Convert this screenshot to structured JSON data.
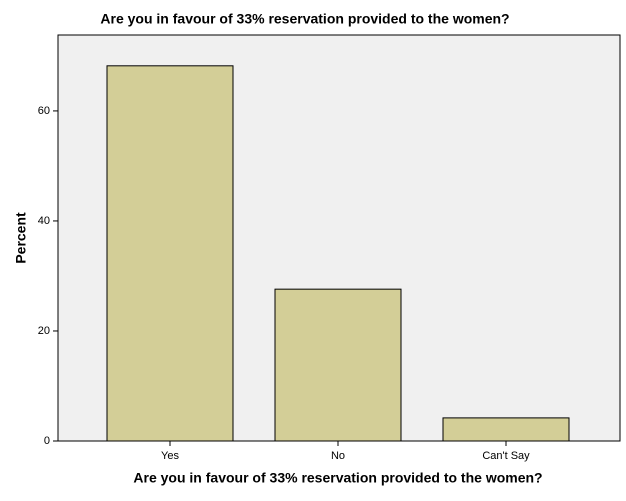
{
  "chart_data": {
    "type": "bar",
    "title": "Are you in favour of 33% reservation provided to the women?",
    "x_label": "Are you in favour of 33% reservation provided to the women?",
    "y_label": "Percent",
    "categories": [
      "Yes",
      "No",
      "Can't Say"
    ],
    "values": [
      68.2,
      27.6,
      4.2
    ],
    "color": "#d3ce97",
    "ylim": [
      0,
      73.8
    ],
    "yticks": [
      0,
      20,
      40,
      60
    ],
    "grid": false
  }
}
